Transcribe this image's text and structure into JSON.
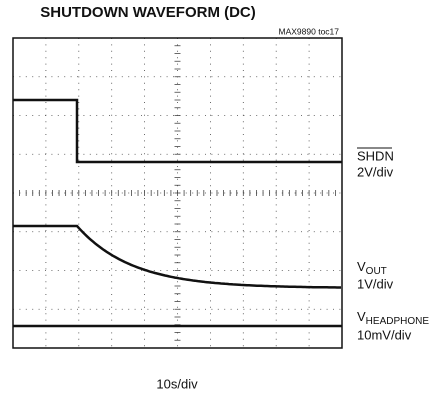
{
  "title": "SHUTDOWN WAVEFORM (DC)",
  "reference": "MAX9890 toc17",
  "traces": [
    {
      "name": "SHDN",
      "scale": "2V/div"
    },
    {
      "name": "V",
      "subscript": "OUT",
      "scale": "1V/div"
    },
    {
      "name": "V",
      "subscript": "HEADPHONE",
      "scale": "10mV/div"
    }
  ],
  "x_scale": "10s/div"
}
